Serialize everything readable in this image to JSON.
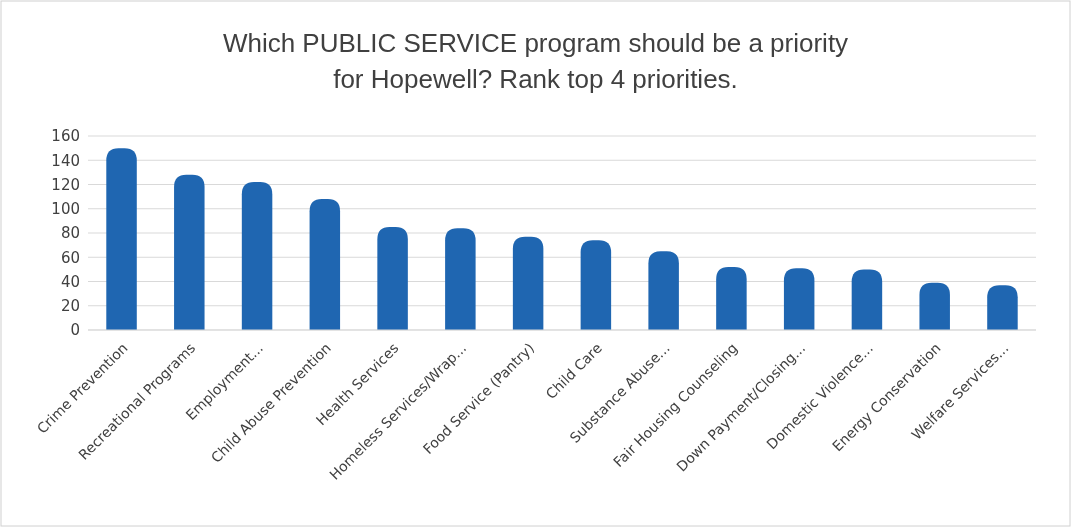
{
  "chart_data": {
    "type": "bar",
    "title": "Which PUBLIC SERVICE program should be a priority for Hopewell? Rank top 4 priorities.",
    "categories": [
      "Crime Prevention",
      "Recreational Programs",
      "Employment...",
      "Child Abuse Prevention",
      "Health Services",
      "Homeless Services/Wrap...",
      "Food Service (Pantry)",
      "Child Care",
      "Substance Abuse...",
      "Fair Housing Counseling",
      "Down Payment/Closing...",
      "Domestic Violence...",
      "Energy Conservation",
      "Welfare Services..."
    ],
    "values": [
      150,
      128,
      122,
      108,
      85,
      84,
      77,
      74,
      65,
      52,
      51,
      50,
      39,
      37
    ],
    "color": "#1f66b1",
    "ylim": [
      0,
      160
    ],
    "yticks": [
      0,
      20,
      40,
      60,
      80,
      100,
      120,
      140,
      160
    ],
    "grid": "y"
  }
}
